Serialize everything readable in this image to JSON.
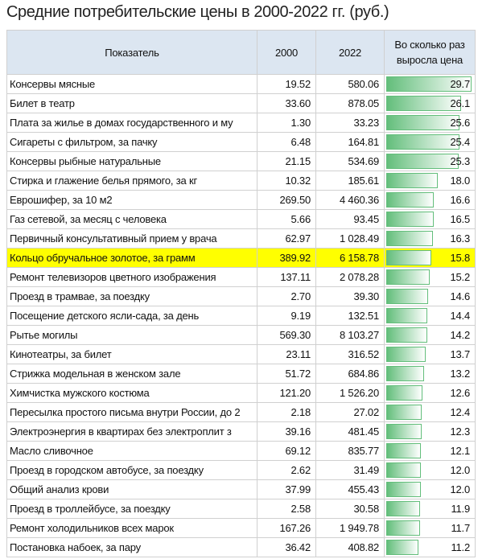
{
  "title": "Средние потребительские цены в 2000-2022 гг. (руб.)",
  "table": {
    "header": [
      "Показатель",
      "2000",
      "2022",
      "Во сколько раз выросла цена"
    ],
    "rows": [
      [
        "Консервы мясные",
        "19.52",
        "580.06",
        "29.7"
      ],
      [
        "Билет в театр",
        "33.60",
        "878.05",
        "26.1"
      ],
      [
        "Плата за жилье в домах государственного и му",
        "1.30",
        "33.23",
        "25.6"
      ],
      [
        "Сигареты с фильтром, за пачку",
        "6.48",
        "164.81",
        "25.4"
      ],
      [
        "Консервы рыбные натуральные",
        "21.15",
        "534.69",
        "25.3"
      ],
      [
        "Стирка и глажение белья прямого, за кг",
        "10.32",
        "185.61",
        "18.0"
      ],
      [
        "Еврошифер, за 10 м2",
        "269.50",
        "4 460.36",
        "16.6"
      ],
      [
        "Газ сетевой, за месяц с человека",
        "5.66",
        "93.45",
        "16.5"
      ],
      [
        "Первичный консультативный прием у врача",
        "62.97",
        "1 028.49",
        "16.3"
      ],
      [
        "Кольцо обручальное золотое, за грамм",
        "389.92",
        "6 158.78",
        "15.8"
      ],
      [
        "Ремонт телевизоров цветного изображения",
        "137.11",
        "2 078.28",
        "15.2"
      ],
      [
        "Проезд в трамвае, за поездку",
        "2.70",
        "39.30",
        "14.6"
      ],
      [
        "Посещение детского ясли-сада, за день",
        "9.19",
        "132.51",
        "14.4"
      ],
      [
        "Рытье могилы",
        "569.30",
        "8 103.27",
        "14.2"
      ],
      [
        "Кинотеатры, за билет",
        "23.11",
        "316.52",
        "13.7"
      ],
      [
        "Стрижка модельная в женском зале",
        "51.72",
        "684.86",
        "13.2"
      ],
      [
        "Химчистка мужского костюма",
        "121.20",
        "1 526.20",
        "12.6"
      ],
      [
        "Пересылка простого письма внутри России, до 2",
        "2.18",
        "27.02",
        "12.4"
      ],
      [
        "Электроэнергия в квартирах  без электроплит з",
        "39.16",
        "481.45",
        "12.3"
      ],
      [
        "Масло сливочное",
        "69.12",
        "835.77",
        "12.1"
      ],
      [
        "Проезд в городском автобусе, за поездку",
        "2.62",
        "31.49",
        "12.0"
      ],
      [
        "Общий анализ крови",
        "37.99",
        "455.43",
        "12.0"
      ],
      [
        "Проезд в троллейбусе, за поездку",
        "2.58",
        "30.58",
        "11.9"
      ],
      [
        "Ремонт холодильников всех марок",
        "167.26",
        "1 949.78",
        "11.7"
      ],
      [
        "Постановка набоек, за пару",
        "36.42",
        "408.82",
        "11.2"
      ]
    ],
    "highlight": {
      "row": 9,
      "color": "#ffff00"
    },
    "bar_color": "#63be7b"
  }
}
